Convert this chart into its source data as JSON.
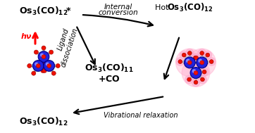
{
  "bg_color": "#ffffff",
  "os_color": "#2222dd",
  "os_edge": "#000088",
  "co_red": "#ee1100",
  "co_red_edge": "#990000",
  "co_white": "#dddddd",
  "co_white_edge": "#999999",
  "pink_glow": "#ffaacc",
  "bond_color": "#444444",
  "arrow_color": "#222222",
  "hv_color": "#ff0000",
  "label_top_left": "Os$_3$(CO)$_{12}$*",
  "label_hot": "Hot ",
  "label_hot_bold": "Os$_3$(CO)$_{12}$",
  "label_bottom_left": "Os$_3$(CO)$_{12}$",
  "label_center1": "Os$_3$(CO)$_{11}$",
  "label_center2": "+CO",
  "arrow_ic1": "Internal",
  "arrow_ic2": "conversion",
  "arrow_ld1": "Ligand",
  "arrow_ld2": "dissociation",
  "arrow_vr": "Vibrational relaxation",
  "hv": "hν"
}
